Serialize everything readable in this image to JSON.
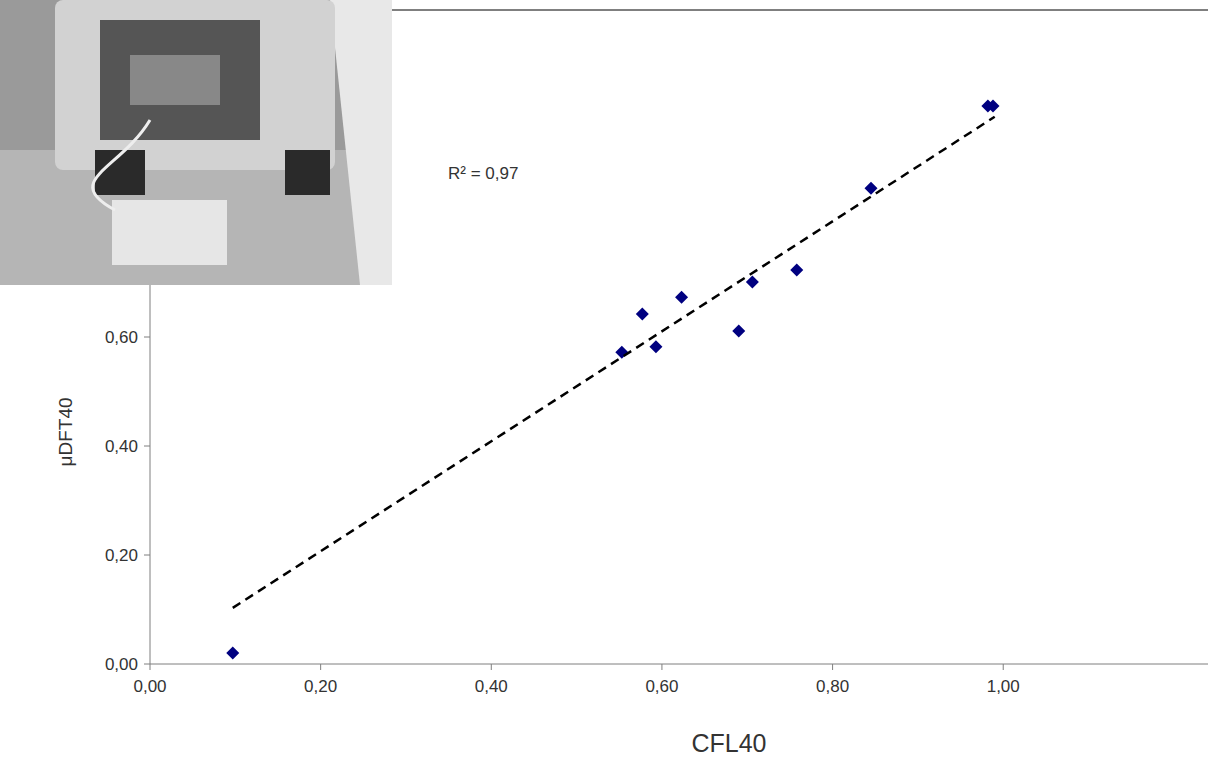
{
  "chart_data": {
    "type": "scatter",
    "annotation": "R² = 0,97",
    "x_label": "CFL40",
    "y_label": "μDFT40",
    "xlim": [
      0,
      1.24
    ],
    "ylim": [
      0,
      1.2
    ],
    "xticks": [
      {
        "value": 0,
        "label": "0,00"
      },
      {
        "value": 0.2,
        "label": "0,20"
      },
      {
        "value": 0.4,
        "label": "0,40"
      },
      {
        "value": 0.6,
        "label": "0,60"
      },
      {
        "value": 0.8,
        "label": "0,80"
      },
      {
        "value": 1.0,
        "label": "1,00"
      }
    ],
    "yticks": [
      {
        "value": 0,
        "label": "0,00"
      },
      {
        "value": 0.2,
        "label": "0,20"
      },
      {
        "value": 0.4,
        "label": "0,40"
      },
      {
        "value": 0.6,
        "label": "0,60"
      }
    ],
    "series": [
      {
        "type": "scatter",
        "color": "#000080",
        "marker": "diamond",
        "x": [
          0.097,
          0.553,
          0.577,
          0.593,
          0.623,
          0.69,
          0.706,
          0.758,
          0.845,
          0.982,
          0.988
        ],
        "values": [
          0.02,
          0.572,
          0.642,
          0.582,
          0.673,
          0.611,
          0.701,
          0.723,
          0.873,
          1.024,
          1.024
        ]
      },
      {
        "type": "line",
        "color": "#000000",
        "line_style": "dashed",
        "x": [
          0.097,
          0.99
        ],
        "values": [
          0.103,
          1.004
        ]
      }
    ]
  }
}
